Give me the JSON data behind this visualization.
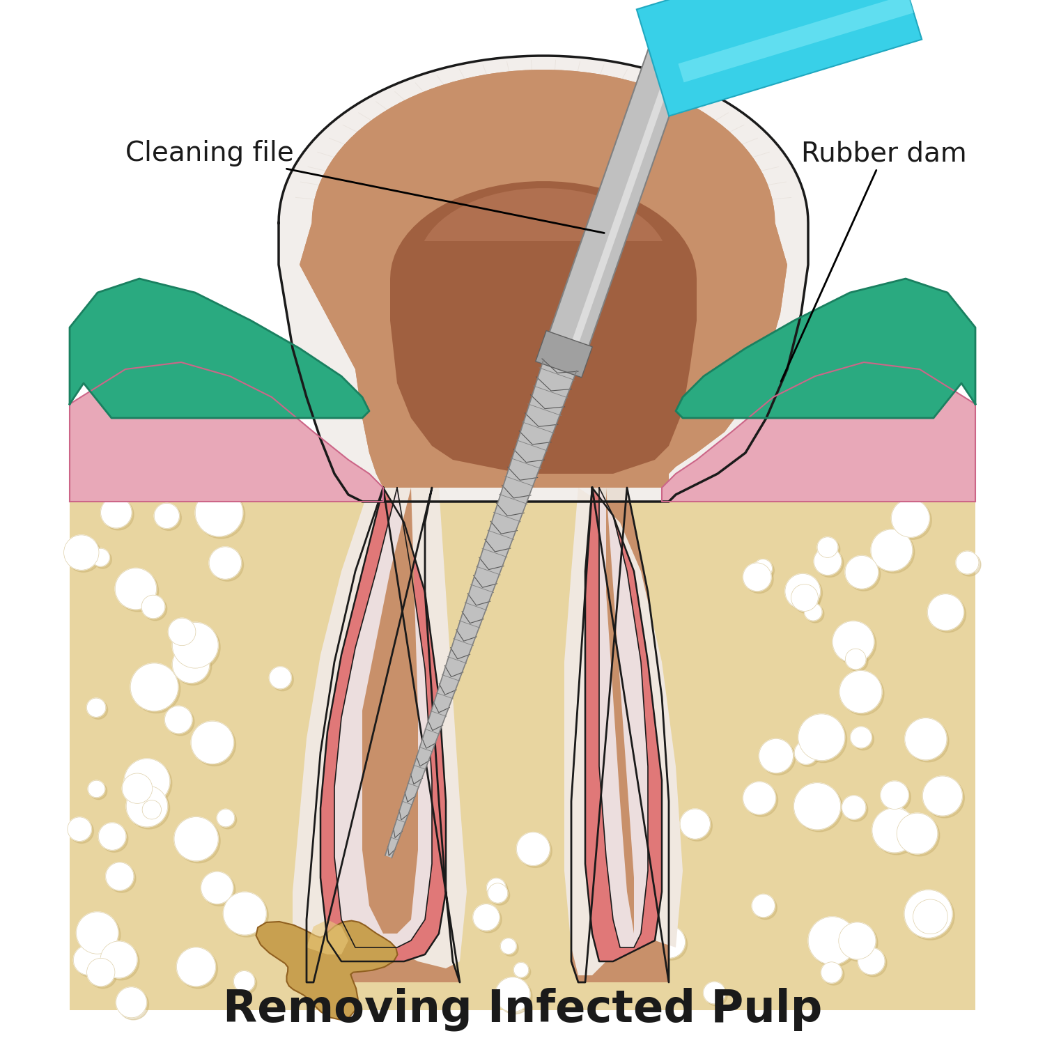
{
  "title": "Removing Infected Pulp",
  "title_fontsize": 46,
  "title_color": "#1a1a1a",
  "label_cleaning_file": "Cleaning file",
  "label_rubber_dam": "Rubber dam",
  "label_fontsize": 28,
  "bg_color": "#ffffff",
  "bone_color": "#e8d5a0",
  "bone_shadow": "#c8b070",
  "gum_pink": "#e8a8b8",
  "gum_dark_pink": "#d47890",
  "green_dam": "#2aaa80",
  "green_dam_dark": "#1a8060",
  "enamel_outer": "#f0ece8",
  "enamel_mid": "#e8ddd5",
  "dentin_color": "#c8906a",
  "dentin_dark": "#b07050",
  "pulp_dark": "#a06040",
  "pulp_light": "#c08060",
  "canal_outer_pink": "#e07878",
  "canal_inner_white": "#ecdede",
  "pdl_white": "#f0e8e0",
  "tool_silver_light": "#e8e8e8",
  "tool_silver": "#c0c0c0",
  "tool_dark": "#808080",
  "tool_darker": "#585858",
  "tool_blue": "#38d0e8",
  "tool_blue_light": "#88ecf8",
  "tool_blue_dark": "#20a8c0",
  "abscess_color": "#c8a050",
  "abscess_dark": "#906020",
  "abscess_light": "#e8c878"
}
